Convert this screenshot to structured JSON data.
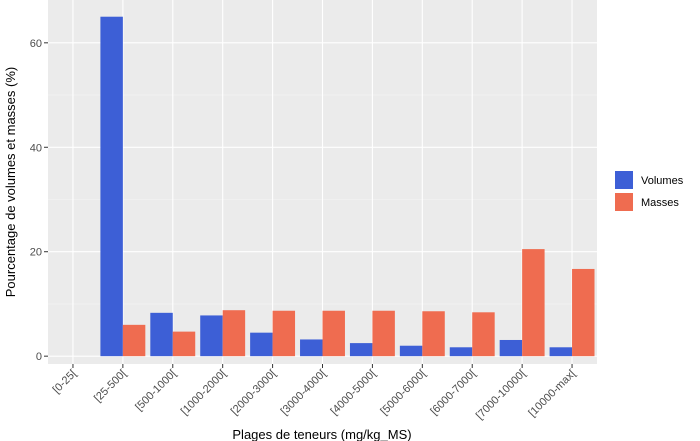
{
  "chart_data": {
    "type": "bar",
    "categories": [
      "[0-25[",
      "[25-500[",
      "[500-1000[",
      "[1000-2000[",
      "[2000-3000[",
      "[3000-4000[",
      "[4000-5000[",
      "[5000-6000[",
      "[6000-7000[",
      "[7000-10000[",
      "[10000-max["
    ],
    "series": [
      {
        "name": "Volumes",
        "color": "#3d5fd6",
        "values": [
          0,
          65,
          8.3,
          7.8,
          4.5,
          3.2,
          2.5,
          2.0,
          1.7,
          3.1,
          1.7
        ]
      },
      {
        "name": "Masses",
        "color": "#ef6c50",
        "values": [
          0,
          6.0,
          4.7,
          8.8,
          8.7,
          8.7,
          8.7,
          8.6,
          8.4,
          20.5,
          16.7
        ]
      }
    ],
    "title": "",
    "xlabel": "Plages de teneurs (mg/kg_MS)",
    "ylabel": "Pourcentage de volumes et masses (%)",
    "ylim": [
      -1.5,
      68.2
    ],
    "yticks": [
      0,
      20,
      40,
      60
    ],
    "grid": true,
    "legend_position": "right",
    "background": "#ebebeb"
  }
}
